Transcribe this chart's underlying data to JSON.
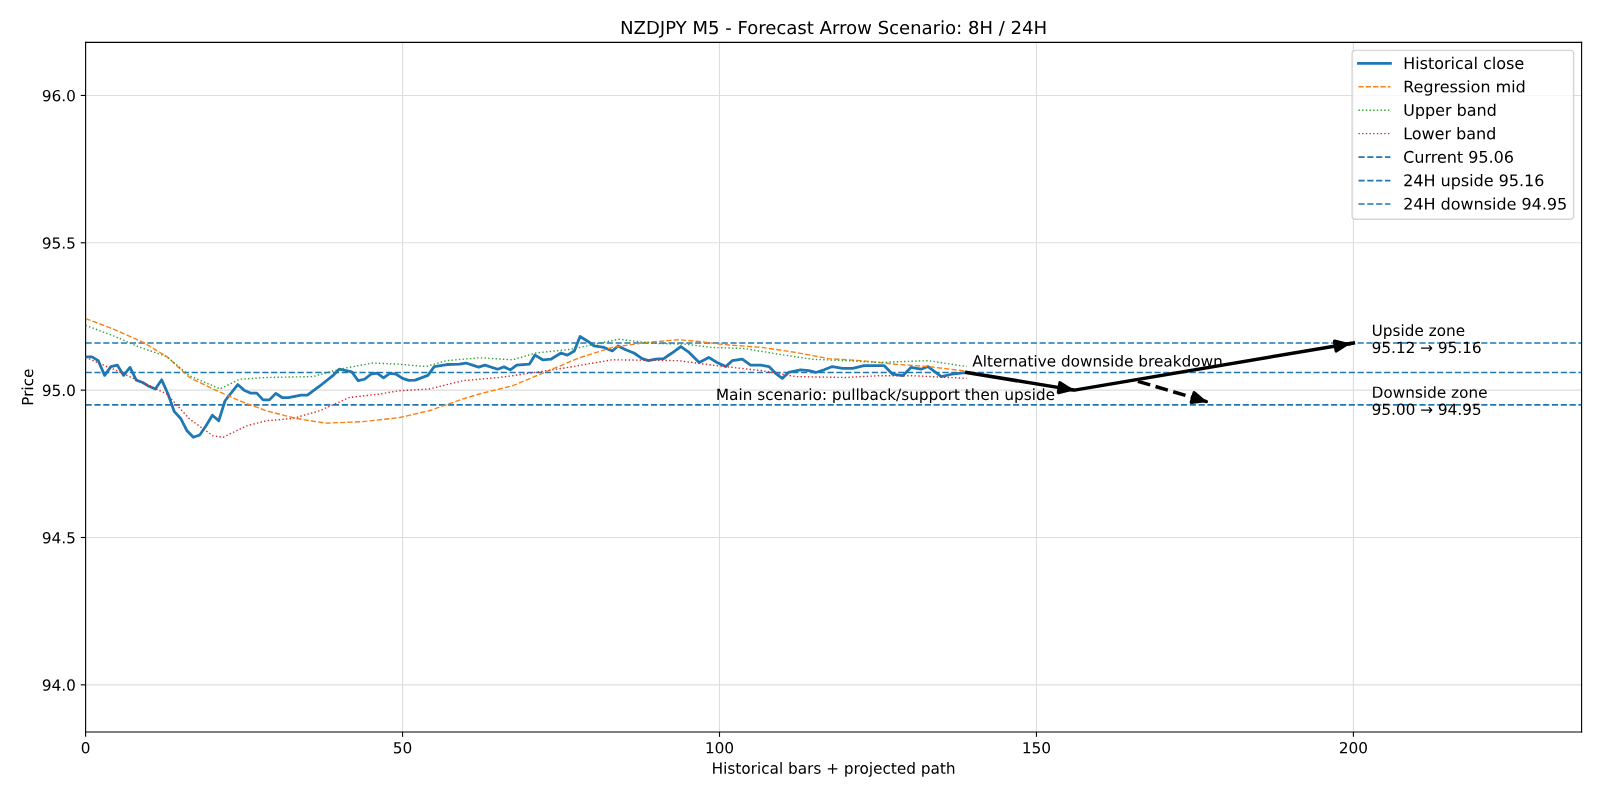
{
  "chart_data": {
    "type": "line",
    "title": "NZDJPY M5 - Forecast Arrow Scenario: 8H / 24H",
    "xlabel": "Historical bars + projected path",
    "ylabel": "Price",
    "xlim": [
      0,
      236
    ],
    "ylim": [
      93.84,
      96.18
    ],
    "xticks": [
      0,
      50,
      100,
      150,
      200
    ],
    "yticks": [
      {
        "value": 94.0,
        "label": "94.0"
      },
      {
        "value": 94.5,
        "label": "94.5"
      },
      {
        "value": 95.0,
        "label": "95.0"
      },
      {
        "value": 95.5,
        "label": "95.5"
      },
      {
        "value": 96.0,
        "label": "96.0"
      }
    ],
    "grid": true,
    "legend": "top right",
    "marker": "none",
    "series": [
      {
        "name": "Historical close",
        "color": "#1f77b4",
        "line_style": "solid",
        "x": [
          0,
          1,
          2,
          3,
          4,
          5,
          6,
          7,
          8,
          9,
          10,
          11,
          12,
          13,
          14,
          15,
          16,
          17,
          18,
          19,
          20,
          21,
          22,
          24,
          25,
          26,
          27,
          28,
          29,
          30,
          31,
          32,
          34,
          35,
          37,
          39,
          40,
          42,
          43,
          44,
          45,
          46,
          47,
          48,
          49,
          50,
          51,
          52,
          54,
          55,
          57,
          59,
          60,
          62,
          63,
          65,
          66,
          67,
          68,
          70,
          70.9,
          72.1,
          73.4,
          75,
          76,
          77.1,
          78,
          79.2,
          80.2,
          81.8,
          83.1,
          84,
          85.2,
          86.5,
          87.8,
          88.8,
          89.9,
          91.2,
          92.5,
          93.9,
          95.2,
          96.8,
          98.3,
          99.6,
          101,
          102,
          103.6,
          104.9,
          106.5,
          107.8,
          108.8,
          109.9,
          110.9,
          112.8,
          114.1,
          115.2,
          116.5,
          117.8,
          119.4,
          121,
          122.8,
          124.7,
          126,
          127.3,
          128.9,
          130.2,
          131.8,
          132.9,
          135,
          136.6,
          139
        ],
        "values": [
          95.113,
          95.113,
          95.1,
          95.05,
          95.08,
          95.085,
          95.05,
          95.077,
          95.034,
          95.026,
          95.013,
          95.004,
          95.035,
          94.987,
          94.927,
          94.904,
          94.862,
          94.84,
          94.848,
          94.879,
          94.915,
          94.896,
          94.964,
          95.019,
          95.0,
          94.99,
          94.99,
          94.967,
          94.967,
          94.989,
          94.975,
          94.975,
          94.983,
          94.983,
          95.015,
          95.049,
          95.071,
          95.062,
          95.032,
          95.037,
          95.054,
          95.058,
          95.042,
          95.057,
          95.054,
          95.04,
          95.033,
          95.034,
          95.05,
          95.08,
          95.087,
          95.088,
          95.092,
          95.078,
          95.085,
          95.071,
          95.079,
          95.069,
          95.085,
          95.088,
          95.119,
          95.103,
          95.105,
          95.126,
          95.119,
          95.133,
          95.182,
          95.166,
          95.15,
          95.145,
          95.133,
          95.15,
          95.137,
          95.126,
          95.107,
          95.1,
          95.105,
          95.107,
          95.126,
          95.148,
          95.128,
          95.094,
          95.111,
          95.094,
          95.08,
          95.1,
          95.105,
          95.085,
          95.085,
          95.08,
          95.058,
          95.04,
          95.06,
          95.069,
          95.066,
          95.06,
          95.069,
          95.08,
          95.074,
          95.074,
          95.083,
          95.083,
          95.083,
          95.054,
          95.049,
          95.077,
          95.071,
          95.08,
          95.046,
          95.054,
          95.06
        ]
      },
      {
        "name": "Regression mid",
        "color": "#ff7f0e",
        "line_style": "dashed",
        "x": [
          0,
          4.4,
          9.1,
          12.8,
          16.4,
          20.1,
          24.3,
          28.5,
          33.2,
          37.9,
          43.7,
          49.5,
          54.2,
          59.5,
          62.1,
          67.4,
          72.6,
          77.9,
          83.1,
          88.4,
          93.6,
          96.3,
          101.5,
          106.7,
          112,
          117.2,
          122.5,
          127.7,
          133,
          139
        ],
        "values": [
          95.243,
          95.207,
          95.162,
          95.114,
          95.043,
          95.004,
          94.964,
          94.93,
          94.904,
          94.888,
          94.893,
          94.907,
          94.93,
          94.97,
          94.987,
          95.015,
          95.062,
          95.11,
          95.145,
          95.162,
          95.171,
          95.166,
          95.153,
          95.145,
          95.128,
          95.107,
          95.1,
          95.088,
          95.08,
          95.064
        ]
      },
      {
        "name": "Upper band",
        "color": "#2ca02c",
        "line_style": "dotted",
        "x": [
          0,
          4.4,
          8.6,
          12.8,
          16.4,
          21.2,
          24.3,
          28.5,
          35.9,
          40,
          45.3,
          49.5,
          53.7,
          56.9,
          62.1,
          67.4,
          71,
          76.7,
          84.1,
          89.4,
          94.6,
          98.8,
          104,
          109.3,
          114.6,
          119.9,
          125.2,
          133,
          139
        ],
        "values": [
          95.22,
          95.184,
          95.145,
          95.114,
          95.049,
          95.004,
          95.037,
          95.043,
          95.046,
          95.071,
          95.092,
          95.088,
          95.08,
          95.1,
          95.11,
          95.103,
          95.126,
          95.139,
          95.173,
          95.159,
          95.156,
          95.145,
          95.141,
          95.122,
          95.105,
          95.1,
          95.094,
          95.1,
          95.08
        ]
      },
      {
        "name": "Lower band",
        "color": "#d62728",
        "line_style": "dotted",
        "x": [
          0,
          4.4,
          9.6,
          12.8,
          16.4,
          20.1,
          21.7,
          25.4,
          28.5,
          32.7,
          36.9,
          41.6,
          46.4,
          49.5,
          54.2,
          59.5,
          65.2,
          67.4,
          75.2,
          83.1,
          93.6,
          98.8,
          106.7,
          112,
          119.9,
          125.2,
          130.4,
          139
        ],
        "values": [
          95.111,
          95.071,
          95.02,
          94.987,
          94.902,
          94.845,
          94.84,
          94.879,
          94.896,
          94.904,
          94.93,
          94.975,
          94.987,
          94.998,
          95.004,
          95.032,
          95.043,
          95.049,
          95.074,
          95.103,
          95.1,
          95.085,
          95.066,
          95.046,
          95.043,
          95.049,
          95.049,
          95.04
        ]
      },
      {
        "color": "#000000",
        "line_style": "solid",
        "x": [
          139,
          156,
          200
        ],
        "values": [
          95.06,
          95.0,
          95.16
        ]
      },
      {
        "color": "#000000",
        "line_style": "dashed",
        "x": [
          166,
          177
        ],
        "values": [
          95.03,
          94.96
        ]
      }
    ],
    "ref_lines": [
      {
        "axis": "y",
        "value": 95.06,
        "label": "Current 95.06",
        "color": "#1f77b4",
        "line_style": "dashed"
      },
      {
        "axis": "y",
        "value": 95.16,
        "label": "24H upside 95.16",
        "color": "#1f77b4",
        "line_style": "dashed"
      },
      {
        "axis": "y",
        "value": 94.95,
        "label": "24H downside 94.95",
        "color": "#1f77b4",
        "line_style": "dashed"
      }
    ],
    "annotations": [
      {
        "text": "Main scenario: pullback/support then upside",
        "x": 156,
        "y": 95.0
      },
      {
        "text": "Alternative downside breakdown",
        "x": 139,
        "y": 95.06
      },
      {
        "text": "Upside zone\n95.12 → 95.16",
        "x": 202,
        "y": 95.16
      },
      {
        "text": "Downside zone\n95.00 → 94.95",
        "x": 202,
        "y": 94.95
      }
    ]
  }
}
